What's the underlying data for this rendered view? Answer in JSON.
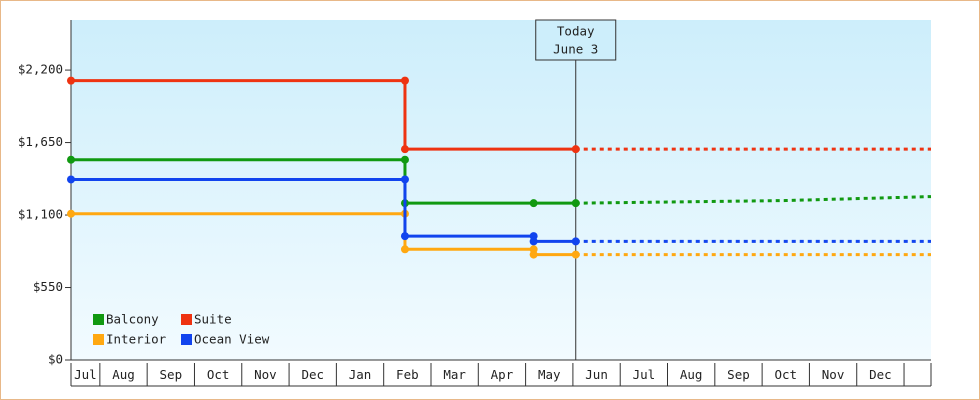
{
  "chart_data": {
    "type": "line",
    "categories": [
      "Jul",
      "Aug",
      "Sep",
      "Oct",
      "Nov",
      "Dec",
      "Jan",
      "Feb",
      "Mar",
      "Apr",
      "May",
      "Jun",
      "Jul",
      "Aug",
      "Sep",
      "Oct",
      "Nov",
      "Dec"
    ],
    "xlim": [
      0.39,
      18.57
    ],
    "ylim": [
      0,
      2580
    ],
    "yticks": [
      {
        "value": 0,
        "label": "$0"
      },
      {
        "value": 550,
        "label": "$550"
      },
      {
        "value": 1100,
        "label": "$1,100"
      },
      {
        "value": 1650,
        "label": "$1,650"
      },
      {
        "value": 2200,
        "label": "$2,200"
      }
    ],
    "today": {
      "x": 11.06,
      "label": [
        "Today",
        "June 3"
      ]
    },
    "legend": "lower left",
    "series": [
      {
        "name": "Balcony",
        "color": "#119911",
        "x": [
          0.39,
          7.45,
          7.45,
          10.17,
          11.06
        ],
        "values": [
          1520,
          1520,
          1190,
          1190,
          1190
        ],
        "forecast_x": [
          11.06,
          15.5,
          18.57
        ],
        "forecast_values": [
          1190,
          1210,
          1240
        ]
      },
      {
        "name": "Suite",
        "color": "#ee3311",
        "x": [
          0.39,
          7.45,
          7.45,
          11.06
        ],
        "values": [
          2120,
          2120,
          1600,
          1600
        ],
        "forecast_x": [
          11.06,
          18.57
        ],
        "forecast_values": [
          1600,
          1600
        ]
      },
      {
        "name": "Interior",
        "color": "#ffa811",
        "x": [
          0.39,
          7.45,
          7.45,
          10.17,
          10.17,
          11.06
        ],
        "values": [
          1110,
          1110,
          840,
          840,
          800,
          800
        ],
        "forecast_x": [
          11.06,
          18.57
        ],
        "forecast_values": [
          800,
          800
        ]
      },
      {
        "name": "Ocean View",
        "color": "#1144ee",
        "x": [
          0.39,
          7.45,
          7.45,
          10.17,
          10.17,
          11.06
        ],
        "values": [
          1370,
          1370,
          940,
          940,
          900,
          900
        ],
        "forecast_x": [
          11.06,
          18.57
        ],
        "forecast_values": [
          900,
          900
        ]
      }
    ]
  }
}
